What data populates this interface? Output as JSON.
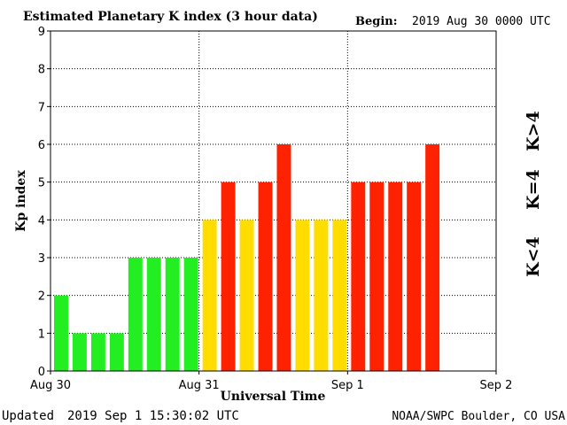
{
  "header": {
    "title": "Estimated Planetary K index (3 hour data)",
    "begin_label": "Begin:",
    "begin_value": "2019 Aug 30 0000 UTC"
  },
  "footer": {
    "updated_label": "Updated",
    "updated_value": "2019 Sep  1 15:30:02 UTC",
    "credit": "NOAA/SWPC Boulder, CO USA"
  },
  "legend": {
    "below": "K<4",
    "equal": "K=4",
    "above": "K>4"
  },
  "colors": {
    "below": "#22ee22",
    "equal": "#ffdd00",
    "above": "#ff2200"
  },
  "chart_data": {
    "type": "bar",
    "title": "Estimated Planetary K index (3 hour data)",
    "xlabel": "Universal Time",
    "ylabel": "Kp index",
    "ylim": [
      0,
      9
    ],
    "yticks": [
      0,
      1,
      2,
      3,
      4,
      5,
      6,
      7,
      8,
      9
    ],
    "xticks": [
      "Aug 30",
      "Aug 31",
      "Sep 1",
      "Sep 2"
    ],
    "interval_hours": 3,
    "grid": true,
    "values": [
      2,
      1,
      1,
      1,
      3,
      3,
      3,
      3,
      4,
      5,
      4,
      5,
      6,
      4,
      4,
      4,
      5,
      5,
      5,
      5,
      6
    ]
  }
}
